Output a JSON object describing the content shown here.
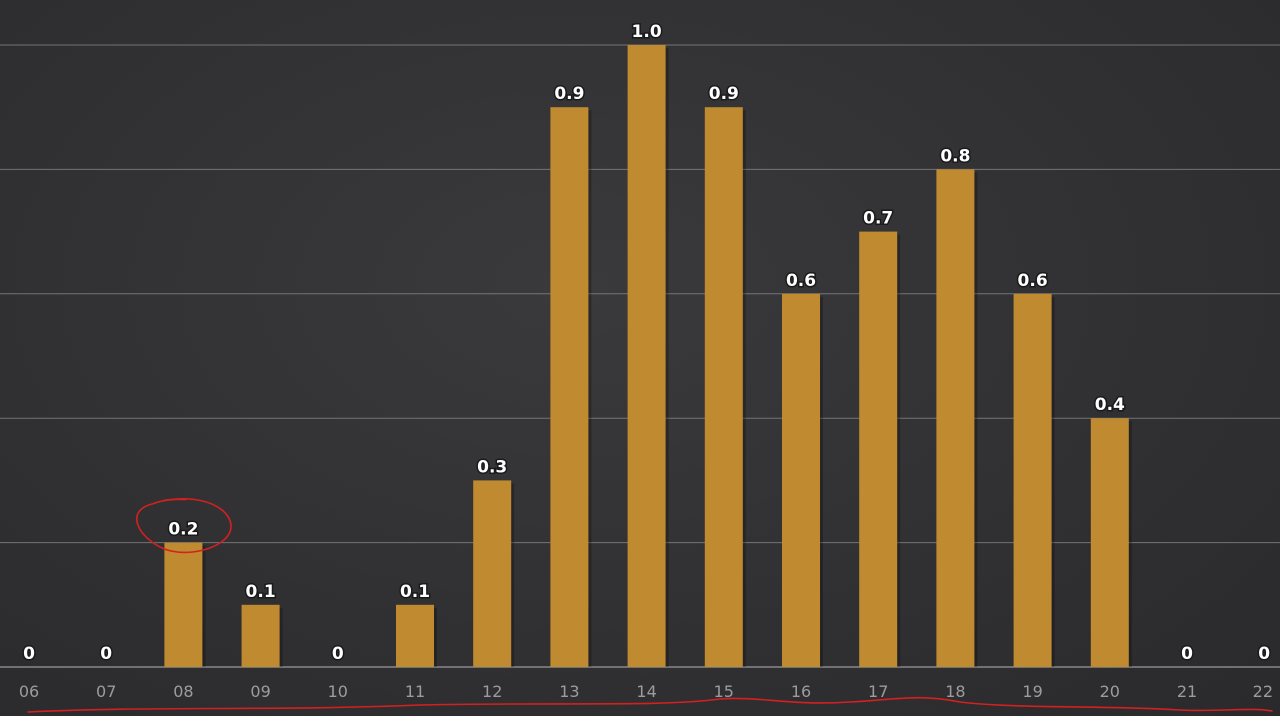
{
  "chart_data": {
    "type": "bar",
    "categories": [
      "06",
      "07",
      "08",
      "09",
      "10",
      "11",
      "12",
      "13",
      "14",
      "15",
      "16",
      "17",
      "18",
      "19",
      "20",
      "21",
      "22"
    ],
    "values": [
      0,
      0,
      0.2,
      0.1,
      0,
      0.1,
      0.3,
      0.9,
      1.0,
      0.9,
      0.6,
      0.7,
      0.8,
      0.6,
      0.4,
      0,
      0
    ],
    "data_labels": [
      "0",
      "0",
      "0.2",
      "0.1",
      "0",
      "0.1",
      "0.3",
      "0.9",
      "1.0",
      "0.9",
      "0.6",
      "0.7",
      "0.8",
      "0.6",
      "0.4",
      "0",
      "0"
    ],
    "ylim": [
      0,
      1.0
    ],
    "grid": true,
    "colors": {
      "bar": "#c08a30",
      "background": "#333335",
      "grid": "#8a8a8c",
      "annotation": "#d42020"
    },
    "annotations": [
      {
        "type": "circle",
        "target_category": "08",
        "color": "#d42020"
      },
      {
        "type": "underline",
        "target": "x-axis",
        "color": "#d42020"
      }
    ]
  }
}
